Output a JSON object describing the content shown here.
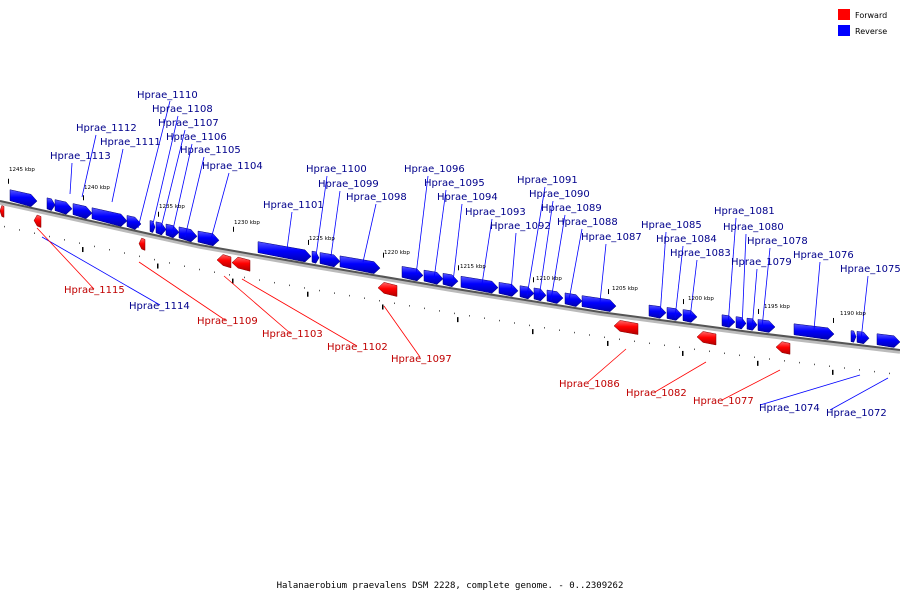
{
  "caption": "Halanaerobium praevalens DSM 2228, complete genome. - 0..2309262",
  "legend": [
    {
      "label": "Forward",
      "color": "#ff0000"
    },
    {
      "label": "Reverse",
      "color": "#0000ff"
    }
  ],
  "colors": {
    "forward": "#ff0000",
    "reverse": "#0000ff",
    "forward_label": "#c00000",
    "reverse_label": "#00008b"
  },
  "kbp_labels": [
    "1245 kbp",
    "1240 kbp",
    "1235 kbp",
    "1230 kbp",
    "1225 kbp",
    "1220 kbp",
    "1215 kbp",
    "1210 kbp",
    "1205 kbp",
    "1200 kbp",
    "1195 kbp",
    "1190 kbp"
  ],
  "genes": [
    {
      "name": "Hprae_1115",
      "strand": "forward"
    },
    {
      "name": "Hprae_1114",
      "strand": "reverse"
    },
    {
      "name": "Hprae_1113",
      "strand": "reverse"
    },
    {
      "name": "Hprae_1112",
      "strand": "reverse"
    },
    {
      "name": "Hprae_1111",
      "strand": "reverse"
    },
    {
      "name": "Hprae_1110",
      "strand": "reverse"
    },
    {
      "name": "Hprae_1109",
      "strand": "forward"
    },
    {
      "name": "Hprae_1108",
      "strand": "reverse"
    },
    {
      "name": "Hprae_1107",
      "strand": "reverse"
    },
    {
      "name": "Hprae_1106",
      "strand": "reverse"
    },
    {
      "name": "Hprae_1105",
      "strand": "reverse"
    },
    {
      "name": "Hprae_1104",
      "strand": "reverse"
    },
    {
      "name": "Hprae_1103",
      "strand": "forward"
    },
    {
      "name": "Hprae_1102",
      "strand": "forward"
    },
    {
      "name": "Hprae_1101",
      "strand": "reverse"
    },
    {
      "name": "Hprae_1100",
      "strand": "reverse"
    },
    {
      "name": "Hprae_1099",
      "strand": "reverse"
    },
    {
      "name": "Hprae_1098",
      "strand": "reverse"
    },
    {
      "name": "Hprae_1097",
      "strand": "forward"
    },
    {
      "name": "Hprae_1096",
      "strand": "reverse"
    },
    {
      "name": "Hprae_1095",
      "strand": "reverse"
    },
    {
      "name": "Hprae_1094",
      "strand": "reverse"
    },
    {
      "name": "Hprae_1093",
      "strand": "reverse"
    },
    {
      "name": "Hprae_1092",
      "strand": "reverse"
    },
    {
      "name": "Hprae_1091",
      "strand": "reverse"
    },
    {
      "name": "Hprae_1090",
      "strand": "reverse"
    },
    {
      "name": "Hprae_1089",
      "strand": "reverse"
    },
    {
      "name": "Hprae_1088",
      "strand": "reverse"
    },
    {
      "name": "Hprae_1087",
      "strand": "reverse"
    },
    {
      "name": "Hprae_1086",
      "strand": "forward"
    },
    {
      "name": "Hprae_1085",
      "strand": "reverse"
    },
    {
      "name": "Hprae_1084",
      "strand": "reverse"
    },
    {
      "name": "Hprae_1083",
      "strand": "reverse"
    },
    {
      "name": "Hprae_1082",
      "strand": "forward"
    },
    {
      "name": "Hprae_1081",
      "strand": "reverse"
    },
    {
      "name": "Hprae_1080",
      "strand": "reverse"
    },
    {
      "name": "Hprae_1079",
      "strand": "reverse"
    },
    {
      "name": "Hprae_1078",
      "strand": "reverse"
    },
    {
      "name": "Hprae_1077",
      "strand": "forward"
    },
    {
      "name": "Hprae_1076",
      "strand": "reverse"
    },
    {
      "name": "Hprae_1075",
      "strand": "reverse"
    },
    {
      "name": "Hprae_1074",
      "strand": "reverse"
    },
    {
      "name": "Hprae_1072",
      "strand": "reverse"
    }
  ]
}
